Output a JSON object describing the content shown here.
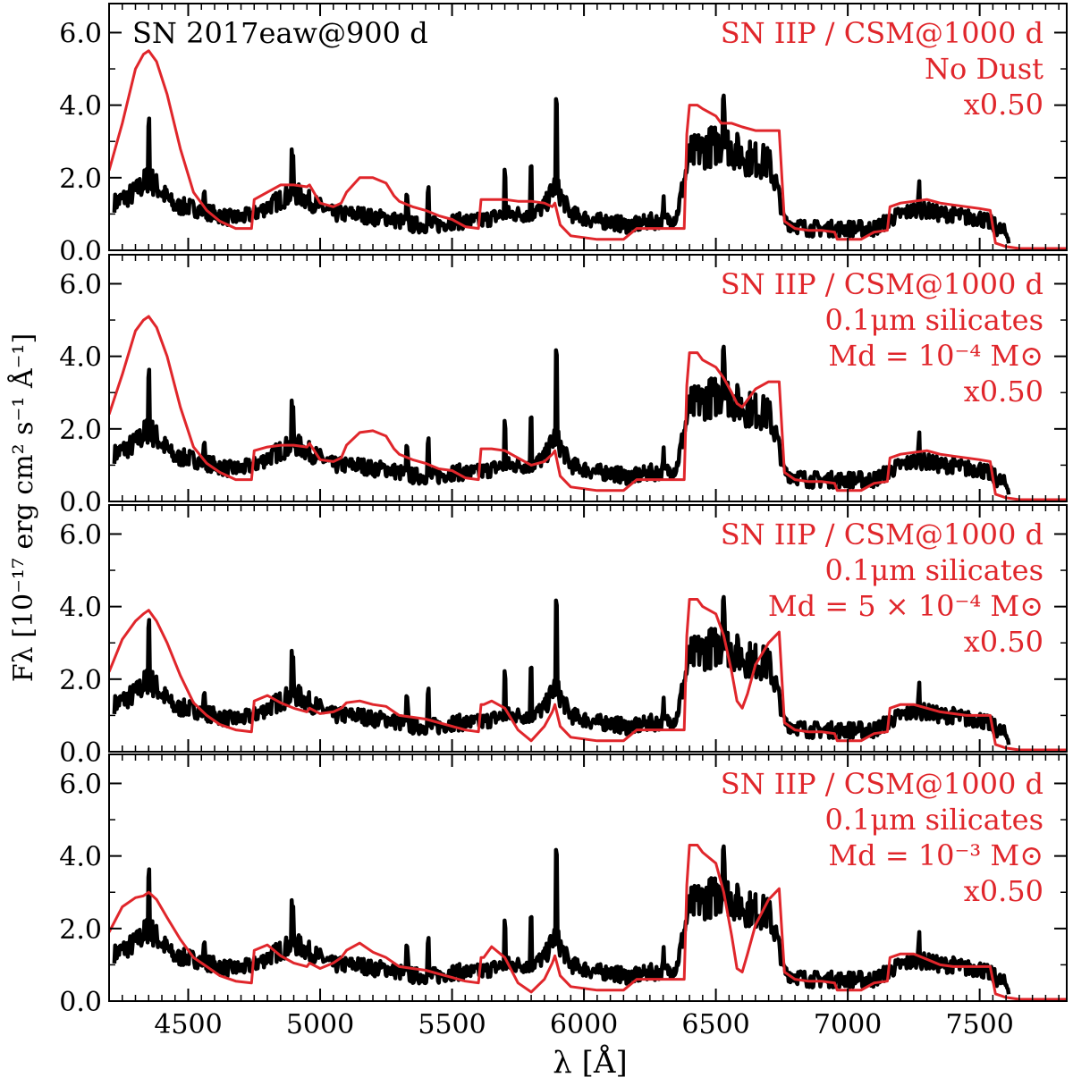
{
  "chart_data": {
    "type": "line",
    "xlabel": "λ [Å]",
    "ylabel": "Fλ [10⁻¹⁷ erg cm² s⁻¹ Å⁻¹]",
    "xlim": [
      4200,
      7830
    ],
    "ylim": [
      0,
      6.8
    ],
    "xticks": [
      4500,
      5000,
      5500,
      6000,
      6500,
      7000,
      7500
    ],
    "yticks": [
      0.0,
      2.0,
      4.0,
      6.0
    ],
    "grid": false,
    "colors": {
      "observed": "#000000",
      "model": "#e0262b"
    },
    "observed_label": "SN 2017eaw@900 d",
    "observed": {
      "x": [
        4220,
        4300,
        4350,
        4400,
        4450,
        4500,
        4550,
        4600,
        4650,
        4700,
        4750,
        4800,
        4850,
        4900,
        4950,
        5000,
        5050,
        5100,
        5150,
        5200,
        5250,
        5300,
        5350,
        5400,
        5450,
        5500,
        5550,
        5600,
        5650,
        5700,
        5750,
        5800,
        5850,
        5890,
        5950,
        6000,
        6050,
        6100,
        6150,
        6200,
        6250,
        6300,
        6350,
        6400,
        6450,
        6500,
        6530,
        6560,
        6600,
        6650,
        6700,
        6730,
        6760,
        6800,
        6850,
        6900,
        6950,
        7000,
        7050,
        7100,
        7150,
        7200,
        7250,
        7300,
        7350,
        7400,
        7450,
        7500,
        7550,
        7610
      ],
      "y": [
        1.3,
        1.6,
        2.0,
        1.6,
        1.2,
        1.2,
        1.1,
        1.0,
        0.9,
        0.9,
        1.0,
        1.2,
        1.4,
        1.6,
        1.4,
        1.2,
        1.0,
        1.0,
        1.0,
        0.9,
        0.9,
        0.8,
        0.7,
        0.7,
        0.7,
        0.8,
        0.8,
        0.8,
        0.9,
        1.0,
        1.0,
        1.0,
        1.2,
        1.8,
        1.0,
        0.9,
        0.8,
        0.8,
        0.7,
        0.7,
        0.8,
        0.8,
        0.9,
        2.6,
        2.8,
        2.9,
        3.0,
        2.8,
        2.6,
        2.5,
        2.4,
        1.8,
        0.8,
        0.7,
        0.6,
        0.6,
        0.6,
        0.6,
        0.6,
        0.6,
        0.8,
        1.0,
        1.1,
        1.1,
        1.0,
        1.0,
        0.9,
        0.9,
        0.7,
        0.4
      ]
    },
    "panels": [
      {
        "model": "SN IIP / CSM@1000 d",
        "dust": "No Dust",
        "mass": "",
        "scale": "x0.50",
        "x": [
          4200,
          4250,
          4300,
          4330,
          4350,
          4380,
          4420,
          4470,
          4520,
          4570,
          4620,
          4680,
          4740,
          4750,
          4800,
          4850,
          4900,
          4950,
          4960,
          5000,
          5050,
          5080,
          5100,
          5150,
          5200,
          5250,
          5280,
          5300,
          5350,
          5400,
          5450,
          5500,
          5550,
          5600,
          5610,
          5620,
          5650,
          5700,
          5750,
          5800,
          5850,
          5880,
          5890,
          5910,
          5950,
          6000,
          6050,
          6100,
          6150,
          6200,
          6250,
          6300,
          6350,
          6380,
          6390,
          6400,
          6430,
          6450,
          6500,
          6520,
          6560,
          6600,
          6650,
          6700,
          6740,
          6760,
          6800,
          6850,
          6900,
          6950,
          6960,
          7000,
          7050,
          7100,
          7150,
          7160,
          7200,
          7250,
          7300,
          7350,
          7400,
          7450,
          7500,
          7540,
          7560,
          7600,
          7650,
          7700,
          7750,
          7830
        ],
        "y": [
          2.2,
          3.5,
          5.0,
          5.4,
          5.5,
          5.2,
          4.3,
          2.8,
          1.6,
          1.1,
          0.8,
          0.6,
          0.6,
          1.4,
          1.6,
          1.8,
          1.8,
          1.75,
          1.8,
          1.3,
          1.2,
          1.3,
          1.6,
          2.0,
          2.0,
          1.85,
          1.5,
          1.35,
          1.2,
          1.1,
          0.95,
          0.85,
          0.65,
          0.6,
          1.4,
          1.4,
          1.4,
          1.4,
          1.35,
          1.35,
          1.3,
          1.2,
          1.3,
          0.7,
          0.4,
          0.35,
          0.3,
          0.3,
          0.3,
          0.6,
          0.6,
          0.6,
          0.6,
          0.6,
          3.2,
          4.0,
          4.0,
          3.9,
          3.7,
          3.5,
          3.5,
          3.4,
          3.3,
          3.3,
          3.3,
          0.8,
          0.6,
          0.55,
          0.55,
          0.5,
          0.3,
          0.3,
          0.3,
          0.5,
          0.55,
          1.2,
          1.3,
          1.35,
          1.4,
          1.3,
          1.25,
          1.2,
          1.15,
          1.1,
          0.2,
          0.1,
          0.05,
          0.05,
          0.05,
          0.05
        ]
      },
      {
        "model": "SN IIP / CSM@1000 d",
        "dust": "0.1μm silicates",
        "mass": "Md = 10⁻⁴ M⊙",
        "scale": "x0.50",
        "x": [
          4200,
          4250,
          4300,
          4330,
          4350,
          4380,
          4420,
          4470,
          4520,
          4570,
          4620,
          4680,
          4740,
          4750,
          4800,
          4850,
          4900,
          4950,
          4960,
          5000,
          5050,
          5080,
          5100,
          5150,
          5200,
          5250,
          5280,
          5300,
          5350,
          5400,
          5450,
          5500,
          5550,
          5600,
          5610,
          5620,
          5650,
          5700,
          5750,
          5800,
          5850,
          5880,
          5890,
          5910,
          5950,
          6000,
          6050,
          6100,
          6150,
          6200,
          6250,
          6300,
          6350,
          6380,
          6390,
          6400,
          6430,
          6450,
          6500,
          6530,
          6560,
          6580,
          6600,
          6620,
          6650,
          6700,
          6740,
          6760,
          6800,
          6850,
          6900,
          6950,
          6960,
          7000,
          7050,
          7100,
          7150,
          7160,
          7200,
          7250,
          7300,
          7350,
          7400,
          7450,
          7500,
          7540,
          7560,
          7600,
          7650,
          7700,
          7750,
          7830
        ],
        "y": [
          2.4,
          3.5,
          4.7,
          5.0,
          5.1,
          4.8,
          4.0,
          2.6,
          1.5,
          1.05,
          0.8,
          0.6,
          0.6,
          1.4,
          1.5,
          1.55,
          1.55,
          1.5,
          1.6,
          1.15,
          1.1,
          1.2,
          1.55,
          1.9,
          1.95,
          1.8,
          1.45,
          1.3,
          1.15,
          1.05,
          0.9,
          0.85,
          0.65,
          0.6,
          1.45,
          1.45,
          1.45,
          1.4,
          1.2,
          1.0,
          1.1,
          1.3,
          1.4,
          0.7,
          0.4,
          0.35,
          0.3,
          0.3,
          0.3,
          0.6,
          0.6,
          0.6,
          0.6,
          0.6,
          3.2,
          4.1,
          4.1,
          3.9,
          3.7,
          3.4,
          3.0,
          2.7,
          2.6,
          2.8,
          3.1,
          3.3,
          3.3,
          0.8,
          0.6,
          0.55,
          0.55,
          0.5,
          0.3,
          0.3,
          0.3,
          0.5,
          0.55,
          1.2,
          1.3,
          1.35,
          1.4,
          1.3,
          1.25,
          1.2,
          1.15,
          1.1,
          0.2,
          0.1,
          0.05,
          0.05,
          0.05,
          0.05
        ]
      },
      {
        "model": "SN IIP / CSM@1000 d",
        "dust": "0.1μm silicates",
        "mass": "Md = 5 × 10⁻⁴ M⊙",
        "scale": "x0.50",
        "x": [
          4200,
          4250,
          4300,
          4330,
          4350,
          4380,
          4420,
          4470,
          4520,
          4570,
          4620,
          4680,
          4740,
          4750,
          4800,
          4850,
          4900,
          4950,
          4960,
          5000,
          5050,
          5080,
          5100,
          5150,
          5200,
          5250,
          5280,
          5300,
          5350,
          5400,
          5450,
          5500,
          5550,
          5600,
          5610,
          5620,
          5650,
          5700,
          5750,
          5800,
          5850,
          5880,
          5890,
          5910,
          5950,
          6000,
          6050,
          6100,
          6150,
          6200,
          6250,
          6300,
          6350,
          6380,
          6390,
          6400,
          6430,
          6450,
          6500,
          6530,
          6560,
          6580,
          6600,
          6620,
          6650,
          6700,
          6740,
          6760,
          6800,
          6850,
          6900,
          6950,
          6960,
          7000,
          7050,
          7100,
          7150,
          7160,
          7200,
          7250,
          7300,
          7350,
          7400,
          7450,
          7500,
          7540,
          7560,
          7600,
          7650,
          7700,
          7750,
          7830
        ],
        "y": [
          2.2,
          3.1,
          3.6,
          3.8,
          3.9,
          3.6,
          3.0,
          2.1,
          1.35,
          1.0,
          0.75,
          0.6,
          0.55,
          1.4,
          1.55,
          1.35,
          1.2,
          1.1,
          1.2,
          1.05,
          1.1,
          1.2,
          1.35,
          1.4,
          1.3,
          1.25,
          1.1,
          1.0,
          0.95,
          0.9,
          0.8,
          0.7,
          0.6,
          0.55,
          1.3,
          1.3,
          1.4,
          1.2,
          0.6,
          0.3,
          0.7,
          1.1,
          1.3,
          0.7,
          0.4,
          0.35,
          0.3,
          0.3,
          0.3,
          0.6,
          0.6,
          0.6,
          0.6,
          0.6,
          3.2,
          4.2,
          4.2,
          4.0,
          3.8,
          3.2,
          2.2,
          1.4,
          1.2,
          1.6,
          2.4,
          3.0,
          3.3,
          0.8,
          0.6,
          0.55,
          0.55,
          0.5,
          0.3,
          0.3,
          0.3,
          0.5,
          0.55,
          1.2,
          1.3,
          1.3,
          1.2,
          1.1,
          1.05,
          1.0,
          1.0,
          1.0,
          0.2,
          0.1,
          0.05,
          0.05,
          0.05,
          0.05
        ]
      },
      {
        "model": "SN IIP / CSM@1000 d",
        "dust": "0.1μm silicates",
        "mass": "Md = 10⁻³ M⊙",
        "scale": "x0.50",
        "x": [
          4200,
          4250,
          4300,
          4330,
          4350,
          4380,
          4420,
          4470,
          4520,
          4570,
          4620,
          4680,
          4740,
          4750,
          4800,
          4850,
          4900,
          4950,
          4960,
          5000,
          5050,
          5080,
          5100,
          5150,
          5200,
          5250,
          5280,
          5300,
          5350,
          5400,
          5450,
          5500,
          5550,
          5600,
          5610,
          5620,
          5650,
          5700,
          5750,
          5800,
          5850,
          5880,
          5890,
          5910,
          5950,
          6000,
          6050,
          6100,
          6150,
          6200,
          6250,
          6300,
          6350,
          6380,
          6390,
          6400,
          6430,
          6450,
          6500,
          6530,
          6560,
          6580,
          6600,
          6620,
          6650,
          6700,
          6740,
          6760,
          6800,
          6850,
          6900,
          6950,
          6960,
          7000,
          7050,
          7100,
          7150,
          7160,
          7200,
          7250,
          7300,
          7350,
          7400,
          7450,
          7500,
          7540,
          7560,
          7600,
          7650,
          7700,
          7750,
          7830
        ],
        "y": [
          1.9,
          2.6,
          2.85,
          2.9,
          3.0,
          2.8,
          2.3,
          1.7,
          1.2,
          0.95,
          0.7,
          0.55,
          0.5,
          1.4,
          1.55,
          1.25,
          1.05,
          0.95,
          1.05,
          0.9,
          1.05,
          1.2,
          1.4,
          1.6,
          1.35,
          1.2,
          1.05,
          0.95,
          0.9,
          0.85,
          0.75,
          0.65,
          0.55,
          0.5,
          1.2,
          1.2,
          1.5,
          1.2,
          0.5,
          0.25,
          0.6,
          1.05,
          1.25,
          0.7,
          0.4,
          0.35,
          0.3,
          0.3,
          0.3,
          0.6,
          0.6,
          0.6,
          0.6,
          0.6,
          3.2,
          4.3,
          4.3,
          4.1,
          3.8,
          3.0,
          1.8,
          0.9,
          0.8,
          1.3,
          2.1,
          2.8,
          3.1,
          0.8,
          0.6,
          0.55,
          0.55,
          0.5,
          0.3,
          0.3,
          0.3,
          0.5,
          0.55,
          1.2,
          1.3,
          1.3,
          1.15,
          1.0,
          0.95,
          0.95,
          0.95,
          0.95,
          0.2,
          0.1,
          0.05,
          0.05,
          0.05,
          0.05
        ]
      }
    ]
  }
}
